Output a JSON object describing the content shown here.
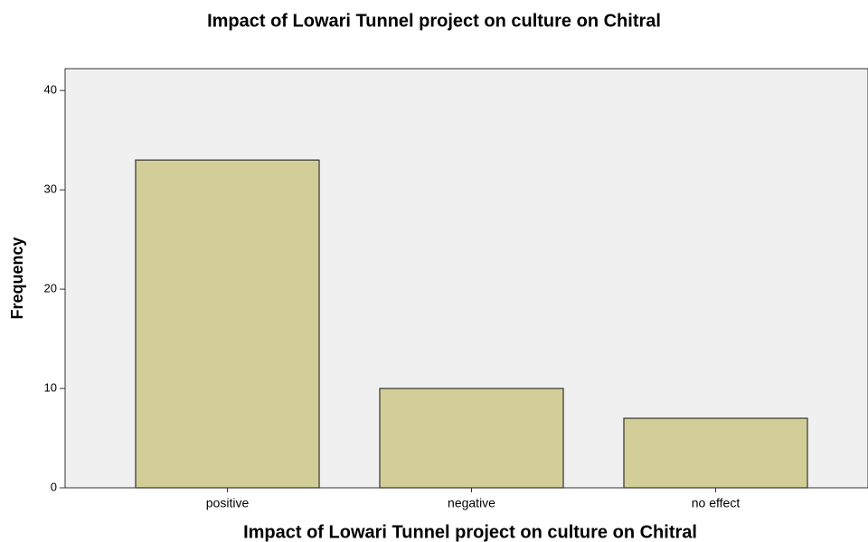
{
  "chart_data": {
    "type": "bar",
    "title": "Impact of Lowari Tunnel project on culture on Chitral",
    "x_label": "Impact of Lowari Tunnel project on culture on Chitral",
    "y_label": "Frequency",
    "categories": [
      "positive",
      "negative",
      "no effect"
    ],
    "values": [
      33,
      10,
      7
    ],
    "color": "#d3ce97",
    "ylim": [
      0,
      42.2
    ],
    "yticks": [
      0,
      10,
      20,
      30,
      40
    ],
    "grid": false
  }
}
